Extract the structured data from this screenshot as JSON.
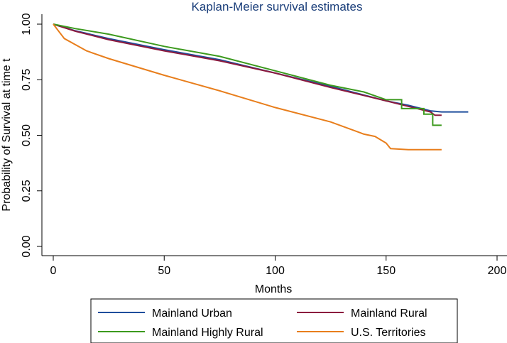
{
  "chart_data": {
    "type": "line",
    "title": "Kaplan-Meier survival estimates",
    "xlabel": "Months",
    "ylabel": "Probability of Survival at time t",
    "xlim": [
      0,
      200
    ],
    "ylim": [
      0,
      1
    ],
    "x_ticks": [
      0,
      50,
      100,
      150,
      200
    ],
    "x_tick_labels": [
      "0",
      "50",
      "100",
      "150",
      "200"
    ],
    "y_ticks": [
      0,
      0.25,
      0.5,
      0.75,
      1
    ],
    "y_tick_labels": [
      "0.00",
      "0.25",
      "0.50",
      "0.75",
      "1.00"
    ],
    "grid": false,
    "legend_position": "bottom",
    "series": [
      {
        "name": "Mainland Urban",
        "color": "#1f4e9c",
        "points": [
          [
            0,
            1.0
          ],
          [
            10,
            0.97
          ],
          [
            25,
            0.935
          ],
          [
            50,
            0.885
          ],
          [
            75,
            0.84
          ],
          [
            100,
            0.78
          ],
          [
            125,
            0.72
          ],
          [
            150,
            0.655
          ],
          [
            160,
            0.635
          ],
          [
            170,
            0.61
          ],
          [
            175,
            0.605
          ],
          [
            187,
            0.605
          ]
        ]
      },
      {
        "name": "Mainland Rural",
        "color": "#8b1a3e",
        "points": [
          [
            0,
            1.0
          ],
          [
            10,
            0.968
          ],
          [
            25,
            0.93
          ],
          [
            50,
            0.88
          ],
          [
            75,
            0.835
          ],
          [
            100,
            0.78
          ],
          [
            125,
            0.715
          ],
          [
            150,
            0.655
          ],
          [
            160,
            0.63
          ],
          [
            170,
            0.605
          ],
          [
            172,
            0.59
          ],
          [
            175,
            0.59
          ]
        ]
      },
      {
        "name": "Mainland Highly Rural",
        "color": "#3c9a1e",
        "points": [
          [
            0,
            1.0
          ],
          [
            10,
            0.98
          ],
          [
            25,
            0.955
          ],
          [
            50,
            0.9
          ],
          [
            75,
            0.855
          ],
          [
            100,
            0.79
          ],
          [
            125,
            0.725
          ],
          [
            140,
            0.695
          ],
          [
            150,
            0.66
          ],
          [
            157,
            0.66
          ],
          [
            157,
            0.62
          ],
          [
            167,
            0.62
          ],
          [
            167,
            0.595
          ],
          [
            171,
            0.595
          ],
          [
            171,
            0.545
          ],
          [
            175,
            0.545
          ]
        ]
      },
      {
        "name": "U.S. Territories",
        "color": "#e87e1c",
        "points": [
          [
            0,
            1.0
          ],
          [
            5,
            0.935
          ],
          [
            15,
            0.88
          ],
          [
            25,
            0.845
          ],
          [
            50,
            0.77
          ],
          [
            75,
            0.7
          ],
          [
            100,
            0.625
          ],
          [
            125,
            0.56
          ],
          [
            140,
            0.505
          ],
          [
            145,
            0.495
          ],
          [
            150,
            0.465
          ],
          [
            152,
            0.44
          ],
          [
            160,
            0.435
          ],
          [
            175,
            0.435
          ]
        ]
      }
    ]
  }
}
